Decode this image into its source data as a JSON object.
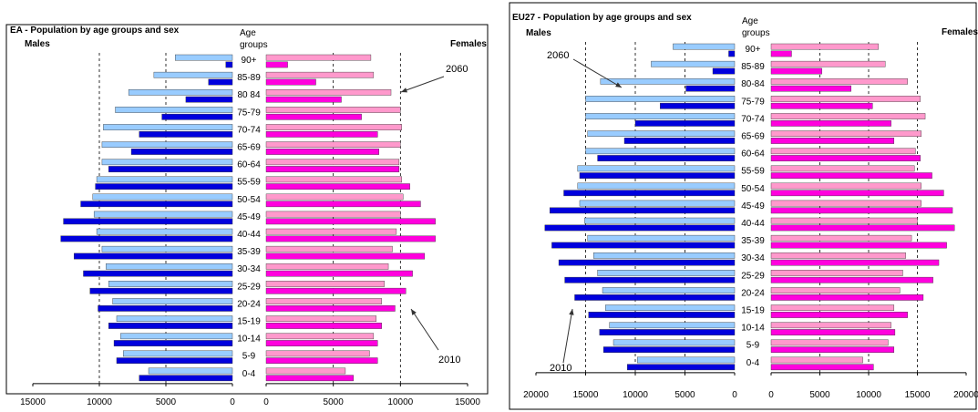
{
  "chart_data": [
    {
      "type": "bar",
      "title": "EA - Population by age groups and sex",
      "left_label": "Males",
      "right_label": "Females",
      "center_header": [
        "Age",
        "groups"
      ],
      "categories": [
        "90+",
        "85-89",
        "80-84",
        "75-79",
        "70-74",
        "65-69",
        "60-64",
        "55-59",
        "50-54",
        "45-49",
        "40-44",
        "35-39",
        "30-34",
        "25-29",
        "20-24",
        "15-19",
        "10-14",
        "5-9",
        "0-4"
      ],
      "category_labels": [
        "90+",
        "85-89",
        "80 84",
        "75-79",
        "70-74",
        "65-69",
        "60-64",
        "55-59",
        "50-54",
        "45-49",
        "40-44",
        "35-39",
        "30-34",
        "25-29",
        "20-24",
        "15-19",
        "10-14",
        "5-9",
        "0-4"
      ],
      "series": [
        {
          "name": "2060",
          "sex": "Males",
          "color": "#99ccff",
          "values": [
            4300,
            5900,
            7800,
            8800,
            9700,
            9800,
            9800,
            10200,
            10500,
            10400,
            10200,
            9800,
            9500,
            9300,
            9000,
            8700,
            8400,
            8200,
            6300
          ]
        },
        {
          "name": "2010",
          "sex": "Males",
          "color": "#0000dd",
          "values": [
            500,
            1800,
            3500,
            5300,
            7000,
            7600,
            9300,
            10300,
            11400,
            12700,
            12900,
            11900,
            11200,
            10700,
            10100,
            9300,
            8900,
            8700,
            7000
          ]
        },
        {
          "name": "2060",
          "sex": "Females",
          "color": "#ff99cc",
          "values": [
            7800,
            8000,
            9300,
            10000,
            10100,
            10000,
            9900,
            10100,
            10200,
            10000,
            9700,
            9400,
            9100,
            8800,
            8600,
            8200,
            8000,
            7700,
            5900
          ]
        },
        {
          "name": "2010",
          "sex": "Females",
          "color": "#ff00dd",
          "values": [
            1600,
            3700,
            5600,
            7100,
            8300,
            8400,
            9900,
            10700,
            11500,
            12600,
            12600,
            11800,
            10900,
            10400,
            9600,
            8600,
            8300,
            8300,
            6500
          ]
        }
      ],
      "x_ticks": [
        "15000",
        "10000",
        "5000",
        "0",
        "0",
        "5000",
        "10000",
        "15000"
      ],
      "xlim": [
        0,
        15000
      ],
      "gridlines": [
        5000,
        10000
      ],
      "annotations": [
        {
          "text": "2060",
          "target": "Females 2060, 85-89"
        },
        {
          "text": "2010",
          "target": "Females 2010, 25-29"
        }
      ]
    },
    {
      "type": "bar",
      "title": "EU27 - Population by age groups and sex",
      "left_label": "Males",
      "right_label": "Females",
      "center_header": [
        "Age",
        "groups"
      ],
      "categories": [
        "90+",
        "85-89",
        "80-84",
        "75-79",
        "70-74",
        "65-69",
        "60-64",
        "55-59",
        "50-54",
        "45-49",
        "40-44",
        "35-39",
        "30-34",
        "25-29",
        "20-24",
        "15-19",
        "10-14",
        "5-9",
        "0-4"
      ],
      "category_labels": [
        "90+",
        "85-89",
        "80-84",
        "75-79",
        "70-74",
        "65-69",
        "60-64",
        "55-59",
        "50-54",
        "45-49",
        "40-44",
        "35-39",
        "30-34",
        "25-29",
        "20-24",
        "15-19",
        "10-14",
        "5-9",
        "0-4"
      ],
      "series": [
        {
          "name": "2060",
          "sex": "Males",
          "color": "#99ccff",
          "values": [
            6200,
            8400,
            13500,
            15000,
            15000,
            14800,
            15000,
            15800,
            15800,
            15600,
            15100,
            14800,
            14200,
            13800,
            13300,
            13000,
            12600,
            12200,
            9800
          ]
        },
        {
          "name": "2010",
          "sex": "Males",
          "color": "#0000dd",
          "values": [
            600,
            2200,
            4900,
            7500,
            10000,
            11100,
            13800,
            15600,
            17200,
            18600,
            19100,
            18400,
            17700,
            17100,
            16100,
            14700,
            13600,
            13200,
            10800
          ]
        },
        {
          "name": "2060",
          "sex": "Females",
          "color": "#ff99cc",
          "values": [
            11000,
            11700,
            14000,
            15300,
            15800,
            15400,
            14800,
            14700,
            15400,
            15400,
            15000,
            14400,
            13800,
            13500,
            13200,
            12600,
            12300,
            12000,
            9400
          ]
        },
        {
          "name": "2010",
          "sex": "Females",
          "color": "#ff00dd",
          "values": [
            2100,
            5200,
            8200,
            10400,
            12300,
            12600,
            15300,
            16500,
            17700,
            18600,
            18800,
            18000,
            17200,
            16600,
            15600,
            14000,
            12700,
            12600,
            10500
          ]
        }
      ],
      "x_ticks": [
        "20000",
        "15000",
        "10000",
        "5000",
        "0",
        "0",
        "5000",
        "10000",
        "15000",
        "20000"
      ],
      "xlim": [
        0,
        20000
      ],
      "gridlines": [
        5000,
        10000,
        15000
      ],
      "annotations": [
        {
          "text": "2060",
          "target": "Males 2060, 80-84"
        },
        {
          "text": "2010",
          "target": "Males 2010, 20-24"
        }
      ]
    }
  ]
}
